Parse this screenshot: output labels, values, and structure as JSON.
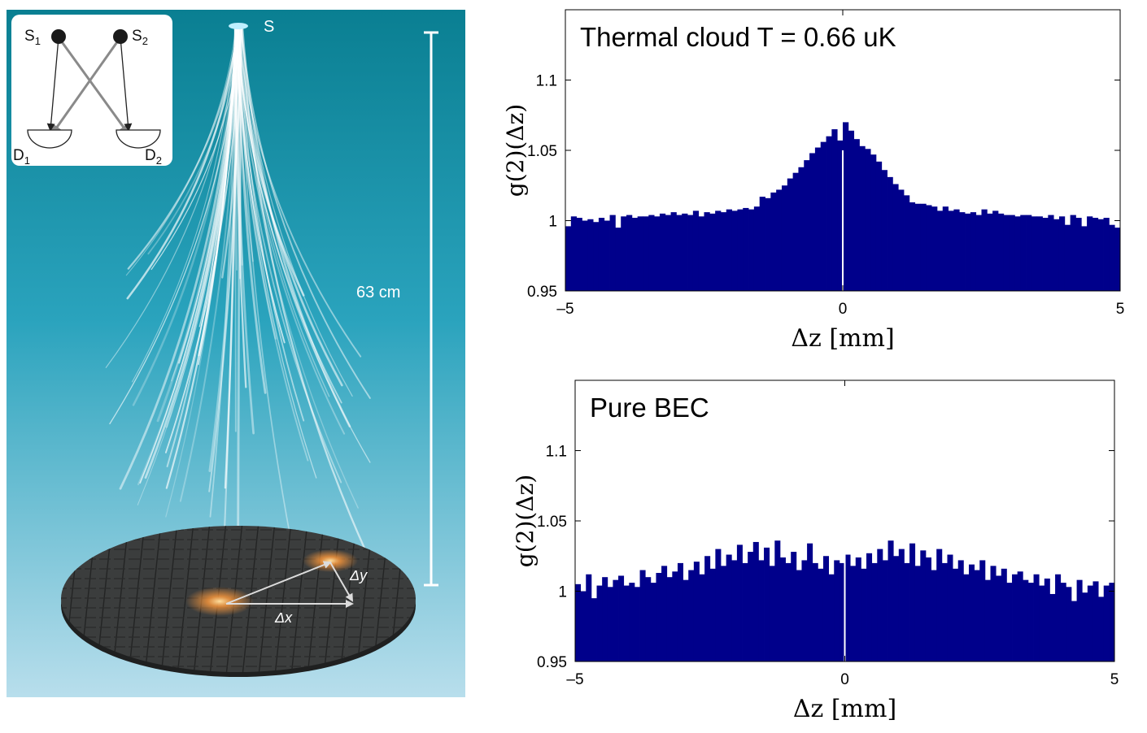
{
  "illustration": {
    "source_label": "S",
    "height_label": "63 cm",
    "dx_label": "Δx",
    "dy_label": "Δy",
    "inset": {
      "s1_label": "S",
      "s1_sub": "1",
      "s2_label": "S",
      "s2_sub": "2",
      "d1_label": "D",
      "d1_sub": "1",
      "d2_label": "D",
      "d2_sub": "2"
    },
    "colors": {
      "sky_top": "#0a7f92",
      "sky_mid": "#2aa3bd",
      "sky_bottom": "#b8deec",
      "detector": "#3b3d3d",
      "hotspot": "#ff9a3c"
    }
  },
  "chart_data": [
    {
      "type": "bar",
      "title": "Thermal cloud T = 0.66 uK",
      "xlabel": "Δz [mm]",
      "ylabel": "g(2)(Δz)",
      "xlim": [
        -5,
        5
      ],
      "ylim": [
        0.95,
        1.15
      ],
      "xticks": [
        "–5",
        "0",
        "5"
      ],
      "yticks": [
        "0.95",
        "1",
        "1.05",
        "1.1"
      ],
      "bar_color": "#00008b",
      "x": [
        -4.95,
        -4.85,
        -4.75,
        -4.65,
        -4.55,
        -4.45,
        -4.35,
        -4.25,
        -4.15,
        -4.05,
        -3.95,
        -3.85,
        -3.75,
        -3.65,
        -3.55,
        -3.45,
        -3.35,
        -3.25,
        -3.15,
        -3.05,
        -2.95,
        -2.85,
        -2.75,
        -2.65,
        -2.55,
        -2.45,
        -2.35,
        -2.25,
        -2.15,
        -2.05,
        -1.95,
        -1.85,
        -1.75,
        -1.65,
        -1.55,
        -1.45,
        -1.35,
        -1.25,
        -1.15,
        -1.05,
        -0.95,
        -0.85,
        -0.75,
        -0.65,
        -0.55,
        -0.45,
        -0.35,
        -0.25,
        -0.15,
        -0.05,
        0.05,
        0.15,
        0.25,
        0.35,
        0.45,
        0.55,
        0.65,
        0.75,
        0.85,
        0.95,
        1.05,
        1.15,
        1.25,
        1.35,
        1.45,
        1.55,
        1.65,
        1.75,
        1.85,
        1.95,
        2.05,
        2.15,
        2.25,
        2.35,
        2.45,
        2.55,
        2.65,
        2.75,
        2.85,
        2.95,
        3.05,
        3.15,
        3.25,
        3.35,
        3.45,
        3.55,
        3.65,
        3.75,
        3.85,
        3.95,
        4.05,
        4.15,
        4.25,
        4.35,
        4.45,
        4.55,
        4.65,
        4.75,
        4.85,
        4.95
      ],
      "values": [
        0.996,
        1.003,
        1.002,
        1.0,
        1.001,
        0.999,
        1.002,
        1.0,
        1.004,
        0.995,
        1.003,
        1.004,
        1.002,
        1.003,
        1.003,
        1.004,
        1.003,
        1.005,
        1.004,
        1.006,
        1.004,
        1.005,
        1.004,
        1.007,
        1.003,
        1.006,
        1.005,
        1.007,
        1.006,
        1.008,
        1.007,
        1.008,
        1.009,
        1.008,
        1.01,
        1.017,
        1.016,
        1.02,
        1.022,
        1.025,
        1.03,
        1.034,
        1.038,
        1.043,
        1.048,
        1.052,
        1.056,
        1.06,
        1.065,
        1.057,
        1.07,
        1.064,
        1.058,
        1.053,
        1.051,
        1.047,
        1.042,
        1.036,
        1.031,
        1.026,
        1.022,
        1.018,
        1.013,
        1.012,
        1.012,
        1.011,
        1.01,
        1.007,
        1.01,
        1.007,
        1.008,
        1.006,
        1.005,
        1.006,
        1.004,
        1.008,
        1.005,
        1.007,
        1.005,
        1.004,
        1.004,
        1.003,
        1.004,
        1.004,
        1.003,
        1.003,
        1.002,
        1.004,
        1.001,
        1.003,
        0.997,
        1.004,
        1.002,
        0.996,
        1.003,
        1.002,
        1.001,
        1.002,
        0.997,
        0.995
      ]
    },
    {
      "type": "bar",
      "title": "Pure BEC",
      "xlabel": "Δz [mm]",
      "ylabel": "g(2)(Δz)",
      "xlim": [
        -5,
        5
      ],
      "ylim": [
        0.95,
        1.15
      ],
      "xticks": [
        "–5",
        "0",
        "5"
      ],
      "yticks": [
        "0.95",
        "1",
        "1.05",
        "1.1"
      ],
      "bar_color": "#00008b",
      "x": [
        -4.95,
        -4.85,
        -4.75,
        -4.65,
        -4.55,
        -4.45,
        -4.35,
        -4.25,
        -4.15,
        -4.05,
        -3.95,
        -3.85,
        -3.75,
        -3.65,
        -3.55,
        -3.45,
        -3.35,
        -3.25,
        -3.15,
        -3.05,
        -2.95,
        -2.85,
        -2.75,
        -2.65,
        -2.55,
        -2.45,
        -2.35,
        -2.25,
        -2.15,
        -2.05,
        -1.95,
        -1.85,
        -1.75,
        -1.65,
        -1.55,
        -1.45,
        -1.35,
        -1.25,
        -1.15,
        -1.05,
        -0.95,
        -0.85,
        -0.75,
        -0.65,
        -0.55,
        -0.45,
        -0.35,
        -0.25,
        -0.15,
        -0.05,
        0.05,
        0.15,
        0.25,
        0.35,
        0.45,
        0.55,
        0.65,
        0.75,
        0.85,
        0.95,
        1.05,
        1.15,
        1.25,
        1.35,
        1.45,
        1.55,
        1.65,
        1.75,
        1.85,
        1.95,
        2.05,
        2.15,
        2.25,
        2.35,
        2.45,
        2.55,
        2.65,
        2.75,
        2.85,
        2.95,
        3.05,
        3.15,
        3.25,
        3.35,
        3.45,
        3.55,
        3.65,
        3.75,
        3.85,
        3.95,
        4.05,
        4.15,
        4.25,
        4.35,
        4.45,
        4.55,
        4.65,
        4.75,
        4.85,
        4.95
      ],
      "values": [
        1.005,
        1.0,
        1.012,
        0.995,
        1.004,
        1.01,
        1.003,
        1.008,
        1.011,
        1.004,
        1.006,
        1.003,
        1.015,
        1.01,
        1.006,
        1.013,
        1.018,
        1.01,
        1.014,
        1.02,
        1.008,
        1.015,
        1.021,
        1.012,
        1.025,
        1.016,
        1.03,
        1.018,
        1.026,
        1.022,
        1.033,
        1.02,
        1.028,
        1.035,
        1.022,
        1.031,
        1.018,
        1.036,
        1.024,
        1.02,
        1.028,
        1.015,
        1.022,
        1.034,
        1.02,
        1.016,
        1.025,
        1.012,
        1.022,
        1.02,
        1.026,
        1.018,
        1.024,
        1.016,
        1.027,
        1.02,
        1.03,
        1.022,
        1.036,
        1.025,
        1.03,
        1.02,
        1.034,
        1.018,
        1.029,
        1.024,
        1.015,
        1.03,
        1.02,
        1.026,
        1.016,
        1.022,
        1.012,
        1.019,
        1.015,
        1.022,
        1.008,
        1.018,
        1.011,
        1.016,
        1.006,
        1.012,
        1.014,
        1.008,
        1.006,
        1.012,
        1.004,
        1.009,
        0.998,
        1.012,
        1.006,
        1.003,
        0.993,
        1.008,
        0.999,
        1.004,
        1.007,
        0.996,
        1.004,
        1.006
      ]
    }
  ]
}
